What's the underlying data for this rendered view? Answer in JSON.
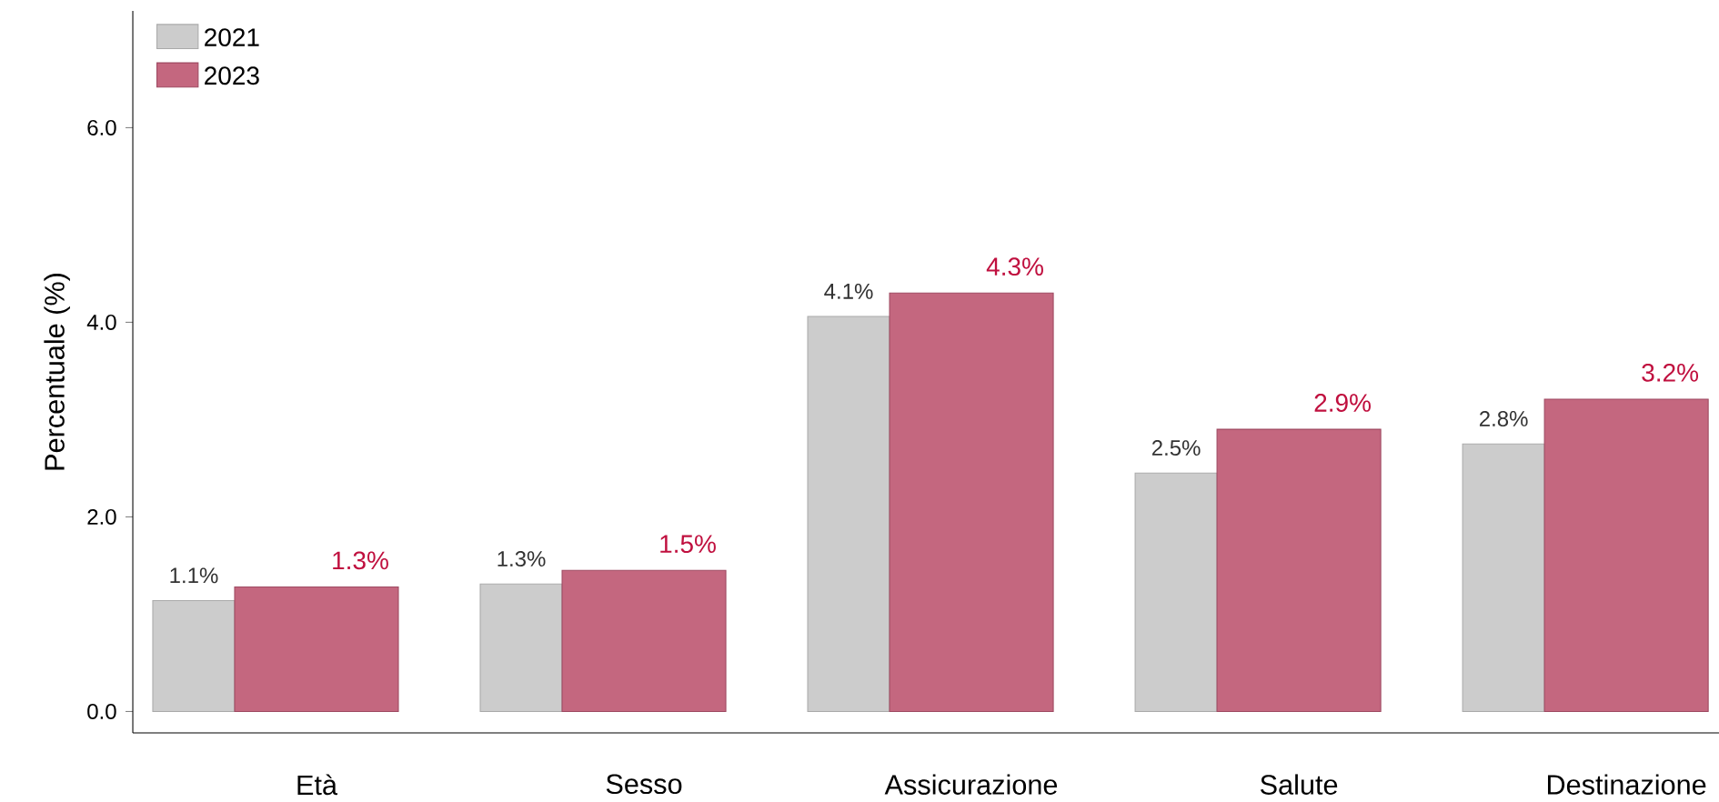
{
  "chart_data": {
    "type": "bar",
    "ylabel": "Percentuale (%)",
    "categories": [
      "Età",
      "Sesso",
      "Assicurazione",
      "Salute",
      "Destinazione"
    ],
    "series": [
      {
        "name": "2021",
        "color": "#cccccc",
        "values": [
          1.14,
          1.31,
          4.06,
          2.45,
          2.75
        ],
        "value_labels": [
          "1.1%",
          "1.3%",
          "4.1%",
          "2.5%",
          "2.8%"
        ]
      },
      {
        "name": "2023",
        "color": "#c4677f",
        "values": [
          1.28,
          1.45,
          4.3,
          2.9,
          3.21
        ],
        "value_labels": [
          "1.3%",
          "1.5%",
          "4.3%",
          "2.9%",
          "3.2%"
        ]
      }
    ],
    "ylim": [
      -0.22,
      7.2
    ],
    "yticks": [
      {
        "value": 0,
        "label": "0.0"
      },
      {
        "value": 2,
        "label": "2.0"
      },
      {
        "value": 4,
        "label": "4.0"
      },
      {
        "value": 6,
        "label": "6.0"
      }
    ],
    "legend": "top left",
    "grid": false
  }
}
